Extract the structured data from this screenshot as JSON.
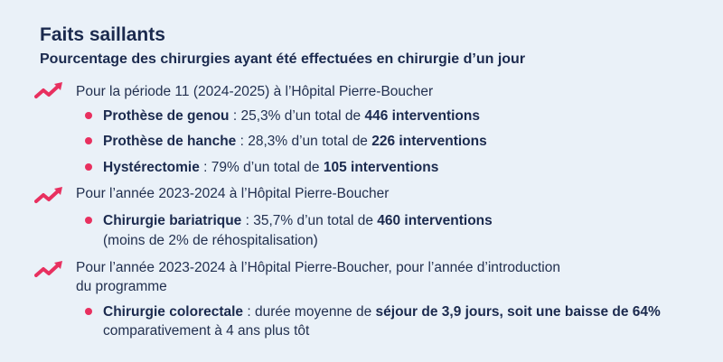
{
  "title": "Faits saillants",
  "subtitle": "Pourcentage des chirurgies ayant été effectuées en chirurgie d’un jour",
  "icon": "trend-up-icon",
  "accent_color": "#e8305f",
  "sections": [
    {
      "heading": "Pour la période 11 (2024-2025) à l’Hôpital Pierre-Boucher",
      "items": [
        {
          "label": "Prothèse de genou",
          "sep": " : ",
          "text": "25,3% d’un total de ",
          "emphasis": "446 interventions"
        },
        {
          "label": "Prothèse de hanche",
          "sep": " : ",
          "text": "28,3% d’un total de ",
          "emphasis": "226 interventions"
        },
        {
          "label": "Hystérectomie",
          "sep": " : ",
          "text": "79% d’un total de ",
          "emphasis": "105 interventions"
        }
      ]
    },
    {
      "heading": "Pour l’année 2023-2024 à l’Hôpital Pierre-Boucher",
      "items": [
        {
          "label": "Chirurgie bariatrique",
          "sep": " : ",
          "text": "35,7% d’un total de ",
          "emphasis": "460 interventions",
          "line2": "(moins de 2% de réhospitalisation)"
        }
      ]
    },
    {
      "heading": "Pour l’année 2023-2024 à l’Hôpital Pierre-Boucher, pour l’année d’introduction",
      "heading_line2": "du programme",
      "items": [
        {
          "label": "Chirurgie colorectale",
          "sep": " : ",
          "text": "durée moyenne de ",
          "emphasis": "séjour de 3,9 jours, soit une baisse de 64%",
          "line2": "comparativement à 4 ans plus tôt"
        }
      ]
    }
  ]
}
